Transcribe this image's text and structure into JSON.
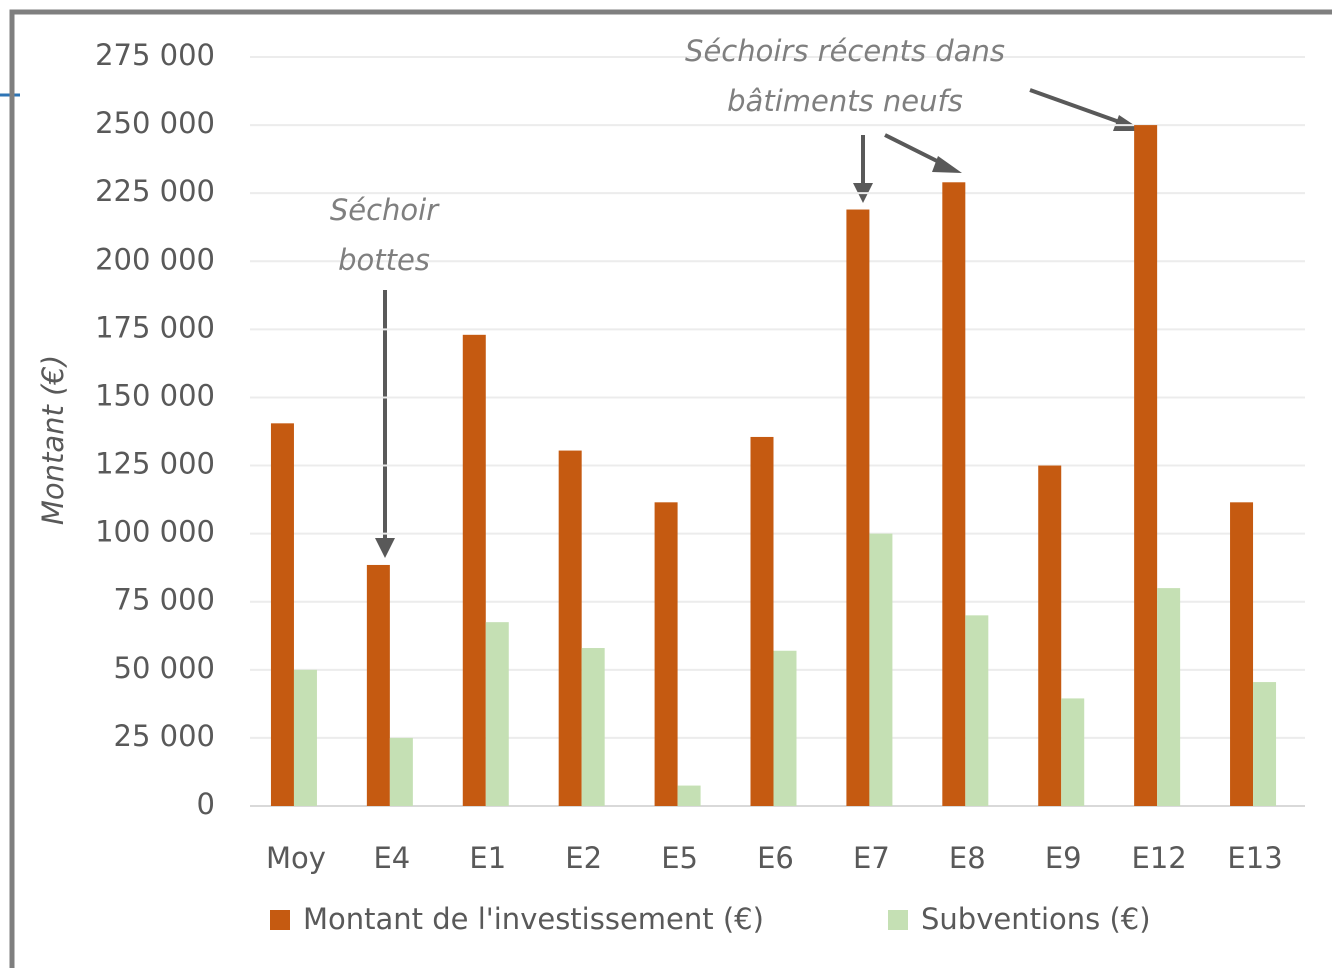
{
  "chart_data": {
    "type": "bar",
    "y_label": "Montant (€)",
    "categories": [
      "Moy",
      "E4",
      "E1",
      "E2",
      "E5",
      "E6",
      "E7",
      "E8",
      "E9",
      "E12",
      "E13"
    ],
    "series": [
      {
        "name": "Montant de l'investissement (€)",
        "color": "#c55a11",
        "values": [
          140500,
          88500,
          173000,
          130500,
          111500,
          135500,
          219000,
          229000,
          125000,
          250000,
          111500
        ]
      },
      {
        "name": "Subventions (€)",
        "color": "#c5e0b4",
        "values": [
          50000,
          25000,
          67500,
          58000,
          7500,
          57000,
          100000,
          70000,
          39500,
          80000,
          45500
        ]
      }
    ],
    "ylim": [
      0,
      275000
    ],
    "yticks": [
      0,
      {
        "value": 25000,
        "label": "25 000"
      },
      {
        "value": 50000,
        "label": "50 000"
      },
      {
        "value": 75000,
        "label": "75 000"
      },
      {
        "value": 100000,
        "label": "100 000"
      },
      {
        "value": 125000,
        "label": "125 000"
      },
      {
        "value": 150000,
        "label": "150 000"
      },
      {
        "value": 175000,
        "label": "175 000"
      },
      {
        "value": 200000,
        "label": "200 000"
      },
      {
        "value": 225000,
        "label": "225 000"
      },
      {
        "value": 250000,
        "label": "250 000"
      },
      {
        "value": 275000,
        "label": "275 000"
      }
    ],
    "grid": true,
    "legend": "bottom",
    "annotations": [
      {
        "lines": [
          "Séchoir",
          "bottes"
        ]
      },
      {
        "lines": [
          "Séchoirs récents dans",
          "bâtiments neufs"
        ]
      }
    ]
  }
}
